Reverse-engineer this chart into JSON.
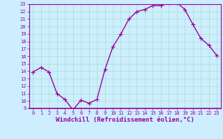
{
  "x": [
    0,
    1,
    2,
    3,
    4,
    5,
    6,
    7,
    8,
    9,
    10,
    11,
    12,
    13,
    14,
    15,
    16,
    17,
    18,
    19,
    20,
    21,
    22,
    23
  ],
  "y": [
    13.9,
    14.5,
    13.9,
    11.0,
    10.2,
    8.8,
    10.1,
    9.7,
    10.2,
    14.2,
    17.3,
    19.0,
    21.0,
    22.0,
    22.3,
    22.8,
    22.8,
    23.2,
    23.2,
    22.3,
    20.3,
    18.4,
    17.5,
    16.1
  ],
  "line_color": "#990099",
  "marker": "+",
  "marker_size": 4,
  "bg_color": "#cceeff",
  "grid_color": "#aaddcc",
  "xlabel": "Windchill (Refroidissement éolien,°C)",
  "ylim": [
    9,
    23
  ],
  "xlim_min": -0.5,
  "xlim_max": 23.5,
  "yticks": [
    9,
    10,
    11,
    12,
    13,
    14,
    15,
    16,
    17,
    18,
    19,
    20,
    21,
    22,
    23
  ],
  "xticks": [
    0,
    1,
    2,
    3,
    4,
    5,
    6,
    7,
    8,
    9,
    10,
    11,
    12,
    13,
    14,
    15,
    16,
    17,
    18,
    19,
    20,
    21,
    22,
    23
  ],
  "tick_color": "#990099",
  "tick_fontsize": 5.0,
  "xlabel_fontsize": 6.5,
  "line_width": 1.0,
  "spine_color": "#990099"
}
